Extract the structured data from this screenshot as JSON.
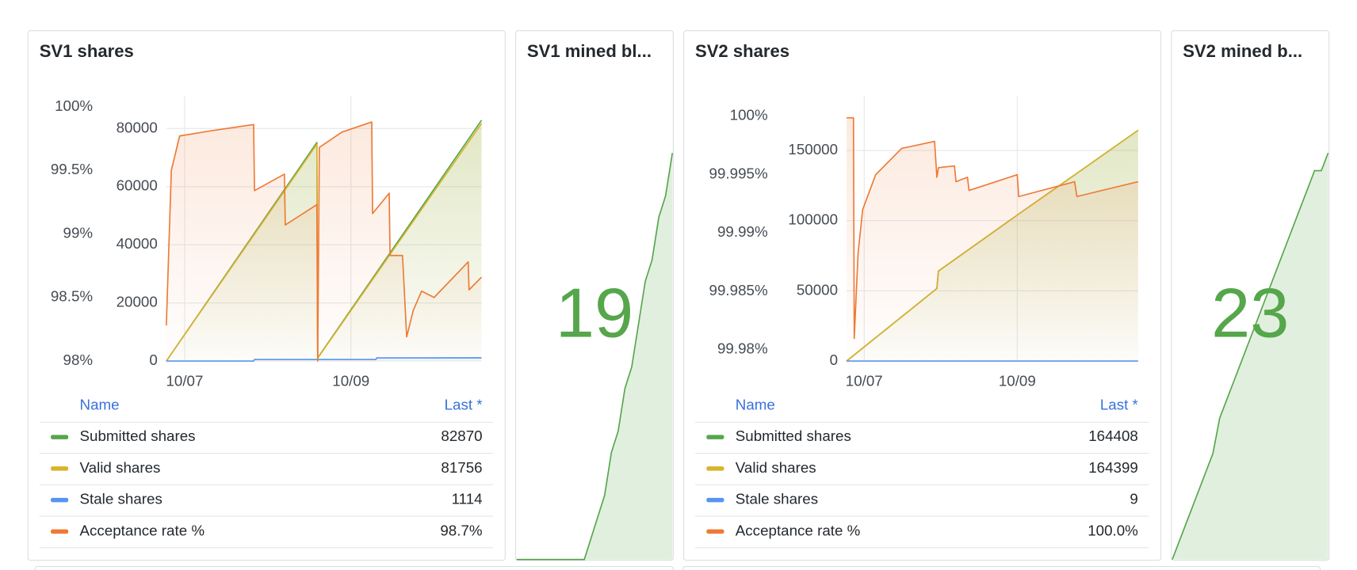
{
  "panels": [
    {
      "title": "SV1 shares",
      "chart": {
        "type": "line",
        "xlim": [
          6.78,
          10.57
        ],
        "xticks": [
          {
            "value": 7,
            "label": "10/07"
          },
          {
            "value": 9,
            "label": "10/09"
          }
        ],
        "ylim": [
          0,
          91128
        ],
        "yticks": [
          0,
          20000,
          40000,
          60000,
          80000
        ],
        "y2lim": [
          98,
          100.083
        ],
        "y2ticks": [
          {
            "value": 98,
            "label": "98%"
          },
          {
            "value": 98.5,
            "label": "98.5%"
          },
          {
            "value": 99,
            "label": "99%"
          },
          {
            "value": 99.5,
            "label": "99.5%"
          },
          {
            "value": 100,
            "label": "100%"
          }
        ],
        "grid": true,
        "series": [
          {
            "name": "Submitted shares",
            "color": "#56a64b",
            "x": [
              6.78,
              8.59,
              8.6,
              10.57
            ],
            "values": [
              0,
              75200,
              1100,
              82870
            ]
          },
          {
            "name": "Valid shares",
            "color": "#d9b32c",
            "x": [
              6.78,
              8.59,
              8.6,
              10.57
            ],
            "values": [
              0,
              74600,
              1000,
              81756
            ]
          },
          {
            "name": "Stale shares",
            "color": "#5794f2",
            "x": [
              6.78,
              7.83,
              7.84,
              9.3,
              9.31,
              10.57
            ],
            "values": [
              0,
              0,
              550,
              550,
              1100,
              1114
            ]
          },
          {
            "name": "Acceptance rate %",
            "color": "#ee7a35",
            "axis": "y2",
            "x": [
              6.78,
              6.84,
              6.94,
              7.31,
              7.83,
              7.84,
              8.2,
              8.21,
              8.59,
              8.6,
              8.62,
              8.89,
              9.25,
              9.26,
              9.46,
              9.47,
              9.62,
              9.67,
              9.75,
              9.85,
              10.0,
              10.41,
              10.42,
              10.57
            ],
            "values": [
              98.28,
              99.5,
              99.77,
              99.81,
              99.86,
              99.34,
              99.47,
              99.07,
              99.23,
              98.0,
              99.68,
              99.8,
              99.88,
              99.16,
              99.32,
              98.83,
              98.83,
              98.19,
              98.4,
              98.55,
              98.5,
              98.78,
              98.56,
              98.66
            ]
          }
        ]
      },
      "legend": {
        "columns": [
          "Name",
          "Last *"
        ],
        "last": [
          "82870",
          "81756",
          "1114",
          "98.7%"
        ]
      }
    },
    {
      "title": "SV1 mined bl...",
      "value": 19,
      "color": "#56a64b",
      "sparkline": [
        0,
        0,
        0,
        0,
        0,
        0,
        0,
        0,
        0,
        0,
        0,
        1,
        2,
        3,
        5,
        6,
        8,
        9,
        11,
        13,
        14,
        16,
        17,
        19
      ]
    },
    {
      "title": "SV2 shares",
      "chart": {
        "type": "line",
        "xlim": [
          6.77,
          10.58
        ],
        "xticks": [
          {
            "value": 7,
            "label": "10/07"
          },
          {
            "value": 9,
            "label": "10/09"
          }
        ],
        "ylim": [
          0,
          188667
        ],
        "yticks": [
          0,
          50000,
          100000,
          150000
        ],
        "y2lim": [
          99.97903,
          100.0017
        ],
        "y2ticks": [
          {
            "value": 99.98,
            "label": "99.98%"
          },
          {
            "value": 99.985,
            "label": "99.985%"
          },
          {
            "value": 99.99,
            "label": "99.99%"
          },
          {
            "value": 99.995,
            "label": "99.995%"
          },
          {
            "value": 100,
            "label": "100%"
          }
        ],
        "grid": true,
        "series": [
          {
            "name": "Submitted shares",
            "color": "#56a64b",
            "x": [
              6.77,
              7.95,
              7.97,
              9.0,
              9.75,
              10.58
            ],
            "values": [
              0,
              51700,
              64100,
              104000,
              132600,
              164408
            ]
          },
          {
            "name": "Valid shares",
            "color": "#d9b32c",
            "x": [
              6.77,
              7.95,
              7.97,
              9.0,
              9.75,
              10.58
            ],
            "values": [
              0,
              51700,
              64100,
              104000,
              132600,
              164399
            ]
          },
          {
            "name": "Stale shares",
            "color": "#5794f2",
            "x": [
              6.77,
              10.58
            ],
            "values": [
              0,
              9
            ]
          },
          {
            "name": "Acceptance rate %",
            "color": "#ee7a35",
            "axis": "y2",
            "x": [
              6.77,
              6.86,
              6.87,
              6.92,
              6.98,
              7.15,
              7.49,
              7.92,
              7.95,
              7.97,
              8.18,
              8.2,
              8.35,
              8.37,
              9.0,
              9.02,
              9.75,
              9.78,
              10.58
            ],
            "values": [
              99.99985,
              99.99985,
              99.98097,
              99.98824,
              99.99199,
              99.99498,
              99.99723,
              99.99783,
              99.99476,
              99.99558,
              99.99573,
              99.99438,
              99.99476,
              99.99363,
              99.99498,
              99.99311,
              99.99438,
              99.99311,
              99.99438
            ]
          }
        ]
      },
      "legend": {
        "columns": [
          "Name",
          "Last *"
        ],
        "last": [
          "164408",
          "164399",
          "9",
          "100.0%"
        ]
      }
    },
    {
      "title": "SV2 mined b...",
      "value": 23,
      "color": "#56a64b",
      "sparkline": [
        0,
        1,
        2,
        3,
        4,
        5,
        6,
        8,
        9,
        10,
        11,
        12,
        13,
        14,
        15,
        16,
        17,
        18,
        19,
        20,
        21,
        22,
        22,
        23
      ]
    }
  ]
}
